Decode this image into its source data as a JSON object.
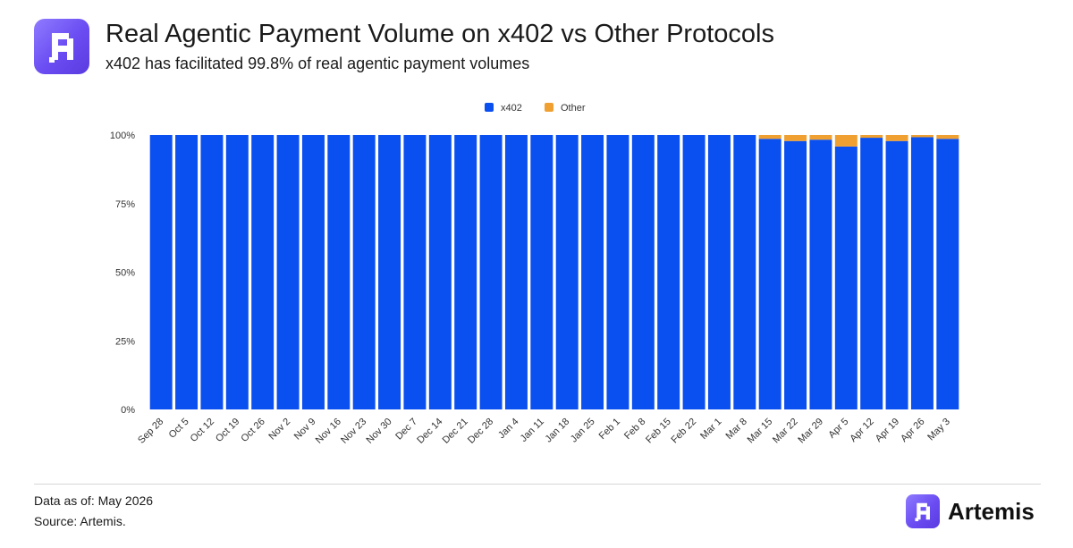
{
  "header": {
    "logo_icon": "artemis-logo-icon",
    "title": "Real Agentic Payment Volume on x402 vs Other Protocols",
    "subtitle": "x402 has facilitated 99.8% of real agentic payment volumes"
  },
  "chart_data": {
    "type": "bar",
    "stacked": true,
    "categories": [
      "Sep 28",
      "Oct 5",
      "Oct 12",
      "Oct 19",
      "Oct 26",
      "Nov 2",
      "Nov 9",
      "Nov 16",
      "Nov 23",
      "Nov 30",
      "Dec 7",
      "Dec 14",
      "Dec 21",
      "Dec 28",
      "Jan 4",
      "Jan 11",
      "Jan 18",
      "Jan 25",
      "Feb 1",
      "Feb 8",
      "Feb 15",
      "Feb 22",
      "Mar 1",
      "Mar 8",
      "Mar 15",
      "Mar 22",
      "Mar 29",
      "Apr 5",
      "Apr 12",
      "Apr 19",
      "Apr 26",
      "May 3"
    ],
    "series": [
      {
        "name": "x402",
        "color": "#0a4ff0",
        "values": [
          100,
          100,
          100,
          100,
          100,
          100,
          100,
          100,
          100,
          100,
          100,
          100,
          100,
          100,
          100,
          100,
          100,
          100,
          100,
          100,
          100,
          100,
          100,
          100,
          98.6,
          97.8,
          98.3,
          95.8,
          99,
          97.8,
          99.2,
          98.6
        ]
      },
      {
        "name": "Other",
        "color": "#f0a030",
        "values": [
          0,
          0,
          0,
          0,
          0,
          0,
          0,
          0,
          0,
          0,
          0,
          0,
          0,
          0,
          0,
          0,
          0,
          0,
          0,
          0,
          0,
          0,
          0,
          0,
          1.4,
          2.2,
          1.7,
          4.2,
          1,
          2.2,
          0.8,
          1.4
        ]
      }
    ],
    "yticks": [
      "0%",
      "25%",
      "50%",
      "75%",
      "100%"
    ],
    "ylim": [
      0,
      100
    ],
    "grid": false,
    "legend_position": "top-center"
  },
  "footer": {
    "data_as_of": "Data as of:  May 2026",
    "source": "Source: Artemis.",
    "brand": "Artemis",
    "brand_icon": "artemis-logo-icon"
  }
}
